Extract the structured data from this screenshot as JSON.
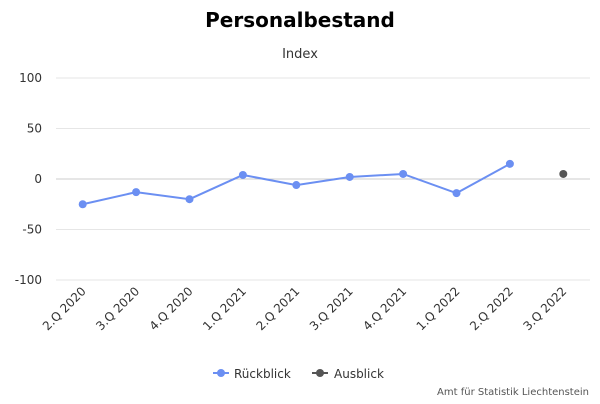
{
  "chart_data": {
    "type": "line",
    "title": "Personalbestand",
    "subtitle": "Index",
    "categories": [
      "2.Q 2020",
      "3.Q 2020",
      "4.Q 2020",
      "1.Q 2021",
      "2.Q 2021",
      "3.Q 2021",
      "4.Q 2021",
      "1.Q 2022",
      "2.Q 2022",
      "3.Q 2022"
    ],
    "yticks": [
      "100",
      "50",
      "0",
      "-50",
      "-100"
    ],
    "ylim": [
      -100,
      100
    ],
    "grid": true,
    "legend_position": "bottom-center",
    "series": [
      {
        "name": "Rückblick",
        "color": "#6b8ff2",
        "values": [
          -25,
          -13,
          -20,
          4,
          -6,
          2,
          5,
          -14,
          15,
          null
        ]
      },
      {
        "name": "Ausblick",
        "color": "#555555",
        "values": [
          null,
          null,
          null,
          null,
          null,
          null,
          null,
          null,
          null,
          5
        ]
      }
    ]
  },
  "source": "Amt für Statistik Liechtenstein"
}
